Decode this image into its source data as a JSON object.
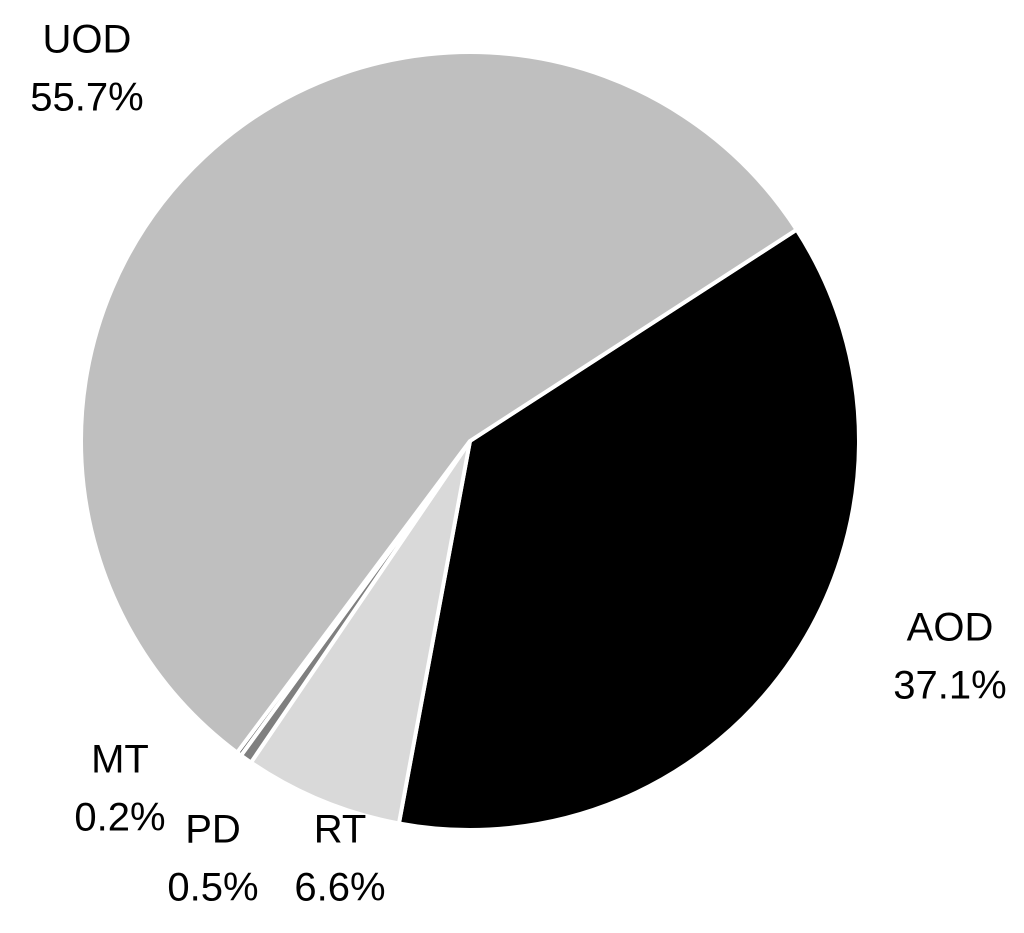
{
  "chart_data": {
    "type": "pie",
    "categories": [
      "AOD",
      "RT",
      "PD",
      "MT",
      "UOD"
    ],
    "values": [
      37.1,
      6.6,
      0.5,
      0.2,
      55.7
    ],
    "value_labels": [
      "37.1%",
      "6.6%",
      "0.5%",
      "0.2%",
      "55.7%"
    ],
    "colors": [
      "#000000",
      "#d9d9d9",
      "#7f7f7f",
      "#595959",
      "#bfbfbf"
    ]
  }
}
